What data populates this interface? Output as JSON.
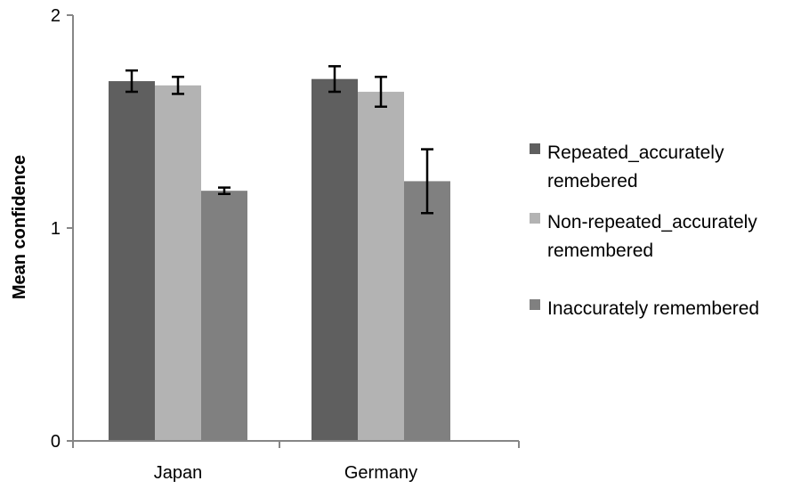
{
  "chart_data": {
    "type": "bar",
    "title": "",
    "xlabel": "",
    "ylabel": "Mean confidence",
    "ylim": [
      0,
      2
    ],
    "yticks": [
      "0",
      "1",
      "2"
    ],
    "categories": [
      "Japan",
      "Germany"
    ],
    "grid": false,
    "legend_position": "right",
    "series": [
      {
        "name": "Repeated_accurately remebered",
        "legend_lines": [
          "Repeated_accurately",
          "remebered"
        ],
        "color": "#5f5f5f",
        "values": [
          1.69,
          1.7
        ],
        "errors": [
          0.05,
          0.06
        ]
      },
      {
        "name": "Non-repeated_accurately remembered",
        "legend_lines": [
          "Non-repeated_accurately",
          "remembered"
        ],
        "color": "#b3b3b3",
        "values": [
          1.67,
          1.64
        ],
        "errors": [
          0.04,
          0.07
        ]
      },
      {
        "name": "Inaccurately remembered",
        "legend_lines": [
          "Inaccurately remembered"
        ],
        "color": "#808080",
        "values": [
          1.175,
          1.22
        ],
        "errors": [
          0.015,
          0.15
        ]
      }
    ]
  }
}
